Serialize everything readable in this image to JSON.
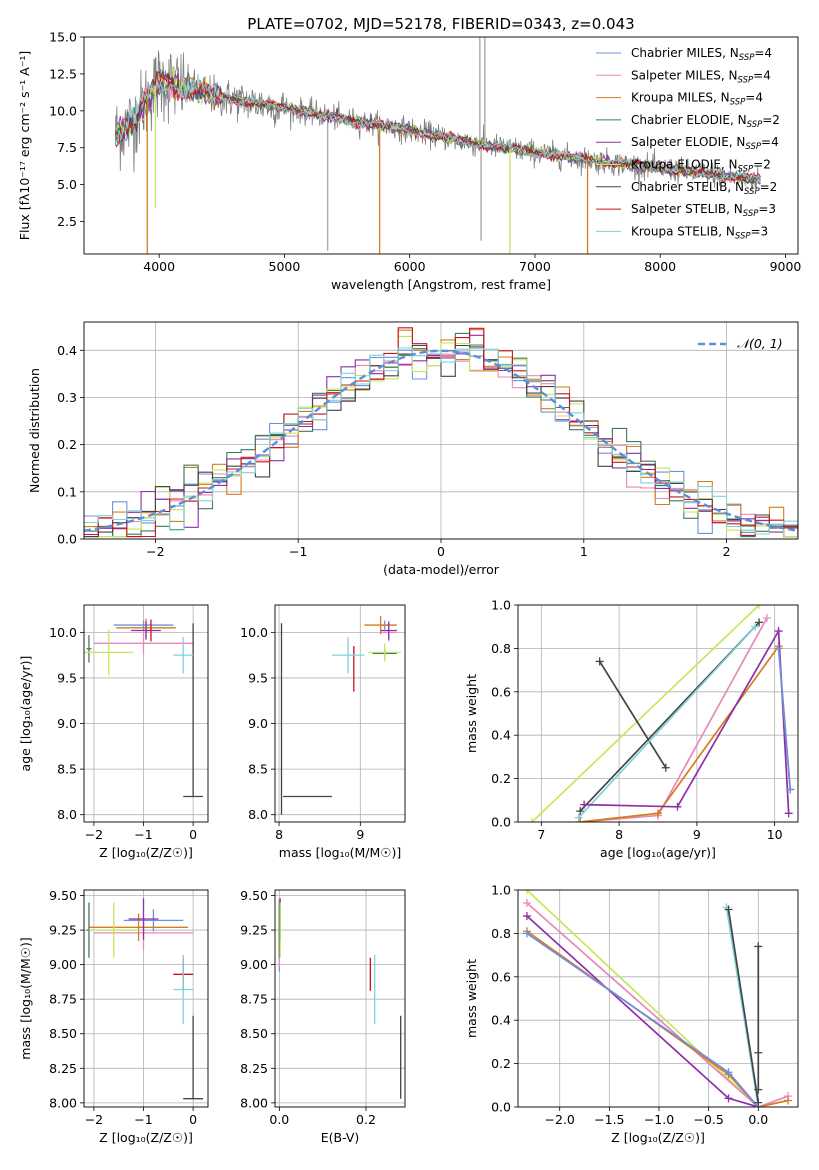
{
  "colors": {
    "chabrier_miles": "#6e8fe0",
    "salpeter_miles": "#e889b9",
    "kroupa_miles": "#d67b1e",
    "chabrier_elodie": "#3f7a5a",
    "salpeter_elodie": "#8e2ea8",
    "kroupa_elodie": "#c4e85a",
    "chabrier_stelib": "#444444",
    "salpeter_stelib": "#c8141e",
    "kroupa_stelib": "#7fd3d8",
    "data": "#808080",
    "gaussian": "#5b8fd8"
  },
  "chart_data": [
    {
      "id": "spectrum",
      "type": "line",
      "title": "PLATE=0702, MJD=52178, FIBERID=0343, z=0.043",
      "xlabel": "wavelength [Angstrom, rest frame]",
      "ylabel": "Flux [fλ10⁻¹⁷ erg cm⁻² s⁻¹ A⁻¹]",
      "xlim": [
        3400,
        9100
      ],
      "ylim": [
        0.3,
        15.0
      ],
      "xticks": [
        4000,
        5000,
        6000,
        7000,
        8000,
        9000
      ],
      "yticks": [
        2.5,
        5.0,
        7.5,
        10.0,
        12.5,
        15.0
      ],
      "xtick_labels": [
        "4000",
        "5000",
        "6000",
        "7000",
        "8000",
        "9000"
      ],
      "ytick_labels": [
        "2.5",
        "5.0",
        "7.5",
        "10.0",
        "12.5",
        "15.0"
      ],
      "legend_position": "top-right",
      "legend": [
        {
          "key": "chabrier_miles",
          "label": "Chabrier MILES, N",
          "sub": "SSP",
          "tail": "=4"
        },
        {
          "key": "salpeter_miles",
          "label": "Salpeter MILES, N",
          "sub": "SSP",
          "tail": "=4"
        },
        {
          "key": "kroupa_miles",
          "label": "Kroupa MILES, N",
          "sub": "SSP",
          "tail": "=4"
        },
        {
          "key": "chabrier_elodie",
          "label": "Chabrier ELODIE, N",
          "sub": "SSP",
          "tail": "=2"
        },
        {
          "key": "salpeter_elodie",
          "label": "Salpeter ELODIE, N",
          "sub": "SSP",
          "tail": "=4"
        },
        {
          "key": "kroupa_elodie",
          "label": "Kroupa ELODIE, N",
          "sub": "SSP",
          "tail": "=2"
        },
        {
          "key": "chabrier_stelib",
          "label": "Chabrier STELIB, N",
          "sub": "SSP",
          "tail": "=2"
        },
        {
          "key": "salpeter_stelib",
          "label": "Salpeter STELIB, N",
          "sub": "SSP",
          "tail": "=3"
        },
        {
          "key": "kroupa_stelib",
          "label": "Kroupa STELIB, N",
          "sub": "SSP",
          "tail": "=3"
        }
      ],
      "continuum": [
        [
          3650,
          8.4
        ],
        [
          3800,
          9.3
        ],
        [
          3900,
          10.8
        ],
        [
          4000,
          12.0
        ],
        [
          4200,
          11.6
        ],
        [
          4500,
          10.9
        ],
        [
          5000,
          10.2
        ],
        [
          5500,
          9.4
        ],
        [
          6000,
          8.7
        ],
        [
          6500,
          7.8
        ],
        [
          7000,
          7.2
        ],
        [
          7500,
          6.6
        ],
        [
          8000,
          6.1
        ],
        [
          8500,
          5.6
        ],
        [
          8800,
          5.3
        ]
      ],
      "model_dips": [
        {
          "x": 3905,
          "y": 0.3,
          "model": "kroupa_miles"
        },
        {
          "x": 3970,
          "y": 3.4,
          "model": "kroupa_elodie"
        },
        {
          "x": 5760,
          "y": 0.3,
          "model": "kroupa_miles"
        },
        {
          "x": 6800,
          "y": 0.3,
          "model": "kroupa_elodie"
        },
        {
          "x": 7420,
          "y": 0.3,
          "model": "kroupa_miles"
        }
      ],
      "data_spikes": [
        {
          "x": 5345,
          "y": 0.5
        },
        {
          "x": 6560,
          "y": 15.0
        },
        {
          "x": 6600,
          "y": 15.0
        },
        {
          "x": 6570,
          "y": 1.2
        }
      ]
    },
    {
      "id": "residuals",
      "type": "histogram",
      "xlabel": "(data-model)/error",
      "ylabel": "Normed distribution",
      "xlim": [
        -2.5,
        2.5
      ],
      "ylim": [
        0.0,
        0.46
      ],
      "xticks": [
        -2,
        -1,
        0,
        1,
        2
      ],
      "yticks": [
        0.0,
        0.1,
        0.2,
        0.3,
        0.4
      ],
      "xtick_labels": [
        "−2",
        "−1",
        "0",
        "1",
        "2"
      ],
      "ytick_labels": [
        "0.0",
        "0.1",
        "0.2",
        "0.3",
        "0.4"
      ],
      "legend_label": "𝒩(0, 1)",
      "legend_position": "top-right",
      "bin_width": 0.1
    },
    {
      "id": "age_vs_Z",
      "type": "errorbar",
      "xlabel": "Z [log₁₀(Z/Z☉)]",
      "ylabel": "age  [log₁₀(age/yr)]",
      "xlim": [
        -2.2,
        0.3
      ],
      "ylim": [
        7.92,
        10.3
      ],
      "xticks": [
        -2,
        -1,
        0
      ],
      "yticks": [
        8.0,
        8.5,
        9.0,
        9.5,
        10.0
      ],
      "xtick_labels": [
        "−2",
        "−1",
        "0"
      ],
      "ytick_labels": [
        "8.0",
        "8.5",
        "9.0",
        "9.5",
        "10.0"
      ],
      "points": [
        {
          "model": "chabrier_miles",
          "x": -1.0,
          "xerr": 0.6,
          "y": 10.08,
          "yerr": 0.05
        },
        {
          "model": "salpeter_miles",
          "x": -1.0,
          "xerr": 1.0,
          "y": 9.88,
          "yerr": 0.12
        },
        {
          "model": "kroupa_miles",
          "x": -0.95,
          "xerr": 0.6,
          "y": 10.05,
          "yerr": 0.1
        },
        {
          "model": "chabrier_elodie",
          "x": -2.1,
          "xerr": 0.05,
          "y": 9.82,
          "yerr": 0.15
        },
        {
          "model": "salpeter_elodie",
          "x": -0.95,
          "xerr": 0.3,
          "y": 10.02,
          "yerr": 0.1
        },
        {
          "model": "kroupa_elodie",
          "x": -1.7,
          "xerr": 0.5,
          "y": 9.78,
          "yerr": 0.25
        },
        {
          "model": "chabrier_stelib",
          "x": 0.0,
          "xerr": 0.2,
          "y": 8.2,
          "yerr": 0.0
        },
        {
          "model": "chabrier_stelib",
          "x": 0.0,
          "xerr": 0.0,
          "y": 9.15,
          "yerr": 0.95
        },
        {
          "model": "salpeter_stelib",
          "x": -0.85,
          "xerr": 0.0,
          "y": 10.02,
          "yerr": 0.12
        },
        {
          "model": "kroupa_stelib",
          "x": -0.2,
          "xerr": 0.2,
          "y": 9.75,
          "yerr": 0.2
        }
      ]
    },
    {
      "id": "age_vs_mass",
      "type": "errorbar",
      "xlabel": "mass [log₁₀(M/M☉)]",
      "ylabel": "",
      "xlim": [
        7.95,
        9.55
      ],
      "ylim": [
        7.92,
        10.3
      ],
      "xticks": [
        8,
        9
      ],
      "yticks": [
        8.0,
        8.5,
        9.0,
        9.5,
        10.0
      ],
      "xtick_labels": [
        "8",
        "9"
      ],
      "ytick_labels": [
        "8.0",
        "8.5",
        "9.0",
        "9.5",
        "10.0"
      ],
      "points": [
        {
          "model": "chabrier_miles",
          "x": 9.3,
          "xerr": 0.05,
          "y": 10.08,
          "yerr": 0.05
        },
        {
          "model": "salpeter_miles",
          "x": 9.35,
          "xerr": 0.1,
          "y": 10.0,
          "yerr": 0.1
        },
        {
          "model": "kroupa_miles",
          "x": 9.25,
          "xerr": 0.2,
          "y": 10.08,
          "yerr": 0.1
        },
        {
          "model": "chabrier_elodie",
          "x": 9.3,
          "xerr": 0.15,
          "y": 9.77,
          "yerr": 0.05
        },
        {
          "model": "salpeter_elodie",
          "x": 9.35,
          "xerr": 0.1,
          "y": 10.02,
          "yerr": 0.1
        },
        {
          "model": "kroupa_elodie",
          "x": 9.3,
          "xerr": 0.2,
          "y": 9.78,
          "yerr": 0.1
        },
        {
          "model": "chabrier_stelib",
          "x": 8.03,
          "xerr": 0.0,
          "y": 9.05,
          "yerr": 1.05
        },
        {
          "model": "chabrier_stelib",
          "x": 8.35,
          "xerr": 0.3,
          "y": 8.2,
          "yerr": 0.0
        },
        {
          "model": "salpeter_stelib",
          "x": 8.92,
          "xerr": 0.0,
          "y": 9.6,
          "yerr": 0.25
        },
        {
          "model": "kroupa_stelib",
          "x": 8.85,
          "xerr": 0.2,
          "y": 9.75,
          "yerr": 0.2
        }
      ]
    },
    {
      "id": "mass_weight_vs_age",
      "type": "line",
      "xlabel": "age  [log₁₀(age/yr)]",
      "ylabel": "mass weight",
      "xlim": [
        6.7,
        10.3
      ],
      "ylim": [
        0.0,
        1.0
      ],
      "xticks": [
        7,
        8,
        9,
        10
      ],
      "yticks": [
        0.0,
        0.2,
        0.4,
        0.6,
        0.8,
        1.0
      ],
      "xtick_labels": [
        "7",
        "8",
        "9",
        "10"
      ],
      "ytick_labels": [
        "0.0",
        "0.2",
        "0.4",
        "0.6",
        "0.8",
        "1.0"
      ],
      "series": [
        {
          "model": "kroupa_elodie",
          "x": [
            6.88,
            9.8
          ],
          "y": [
            0.0,
            1.0
          ]
        },
        {
          "model": "chabrier_stelib",
          "x": [
            7.75,
            8.6
          ],
          "y": [
            0.74,
            0.25
          ]
        },
        {
          "model": "chabrier_stelib",
          "x": [
            7.5,
            9.8
          ],
          "y": [
            0.05,
            0.92
          ]
        },
        {
          "model": "kroupa_stelib",
          "x": [
            7.48,
            9.75
          ],
          "y": [
            0.02,
            0.9
          ]
        },
        {
          "model": "salpeter_miles",
          "x": [
            7.5,
            8.5,
            9.9
          ],
          "y": [
            0.0,
            0.03,
            0.94
          ]
        },
        {
          "model": "kroupa_miles",
          "x": [
            7.5,
            8.5,
            10.05,
            10.2
          ],
          "y": [
            0.0,
            0.04,
            0.81,
            0.15
          ]
        },
        {
          "model": "salpeter_elodie",
          "x": [
            7.55,
            8.75,
            10.05,
            10.18
          ],
          "y": [
            0.08,
            0.07,
            0.88,
            0.04
          ]
        },
        {
          "model": "chabrier_miles",
          "x": [
            10.05,
            10.2
          ],
          "y": [
            0.8,
            0.15
          ]
        }
      ]
    },
    {
      "id": "mass_vs_Z",
      "type": "errorbar",
      "xlabel": "Z [log₁₀(Z/Z☉)]",
      "ylabel": "mass [log₁₀(M/M☉)]",
      "xlim": [
        -2.2,
        0.3
      ],
      "ylim": [
        7.97,
        9.54
      ],
      "xticks": [
        -2,
        -1,
        0
      ],
      "yticks": [
        8.0,
        8.25,
        8.5,
        8.75,
        9.0,
        9.25,
        9.5
      ],
      "xtick_labels": [
        "−2",
        "−1",
        "0"
      ],
      "ytick_labels": [
        "8.00",
        "8.25",
        "8.50",
        "8.75",
        "9.00",
        "9.25",
        "9.50"
      ],
      "points": [
        {
          "model": "chabrier_miles",
          "x": -0.8,
          "xerr": 0.6,
          "y": 9.32,
          "yerr": 0.08
        },
        {
          "model": "salpeter_miles",
          "x": -1.0,
          "xerr": 1.0,
          "y": 9.23,
          "yerr": 0.12
        },
        {
          "model": "kroupa_miles",
          "x": -1.1,
          "xerr": 1.0,
          "y": 9.27,
          "yerr": 0.1
        },
        {
          "model": "chabrier_elodie",
          "x": -2.1,
          "xerr": 0.05,
          "y": 9.25,
          "yerr": 0.2
        },
        {
          "model": "salpeter_elodie",
          "x": -1.0,
          "xerr": 0.3,
          "y": 9.33,
          "yerr": 0.15
        },
        {
          "model": "kroupa_elodie",
          "x": -1.6,
          "xerr": 0.5,
          "y": 9.25,
          "yerr": 0.2
        },
        {
          "model": "chabrier_stelib",
          "x": 0.0,
          "xerr": 0.2,
          "y": 8.03,
          "yerr": 0.0
        },
        {
          "model": "chabrier_stelib",
          "x": 0.0,
          "xerr": 0.0,
          "y": 8.33,
          "yerr": 0.3
        },
        {
          "model": "salpeter_stelib",
          "x": -0.2,
          "xerr": 0.2,
          "y": 8.93,
          "yerr": 0.12
        },
        {
          "model": "kroupa_stelib",
          "x": -0.2,
          "xerr": 0.2,
          "y": 8.82,
          "yerr": 0.25
        }
      ]
    },
    {
      "id": "mass_vs_ebv",
      "type": "errorbar",
      "xlabel": "E(B-V)",
      "ylabel": "",
      "xlim": [
        -0.01,
        0.29
      ],
      "ylim": [
        7.97,
        9.54
      ],
      "xticks": [
        0.0,
        0.2
      ],
      "yticks": [
        8.0,
        8.25,
        8.5,
        8.75,
        9.0,
        9.25,
        9.5
      ],
      "xtick_labels": [
        "0.0",
        "0.2"
      ],
      "ytick_labels": [
        "8.00",
        "8.25",
        "8.50",
        "8.75",
        "9.00",
        "9.25",
        "9.50"
      ],
      "points": [
        {
          "model": "chabrier_miles",
          "x": 0.0,
          "xerr": 0.0,
          "y": 9.2,
          "yerr": 0.25
        },
        {
          "model": "salpeter_miles",
          "x": 0.0,
          "xerr": 0.0,
          "y": 9.23,
          "yerr": 0.25
        },
        {
          "model": "kroupa_miles",
          "x": 0.0,
          "xerr": 0.0,
          "y": 9.27,
          "yerr": 0.2
        },
        {
          "model": "chabrier_elodie",
          "x": 0.0,
          "xerr": 0.0,
          "y": 9.25,
          "yerr": 0.2
        },
        {
          "model": "salpeter_elodie",
          "x": 0.002,
          "xerr": 0.0,
          "y": 9.33,
          "yerr": 0.15
        },
        {
          "model": "kroupa_elodie",
          "x": 0.002,
          "xerr": 0.0,
          "y": 9.25,
          "yerr": 0.2
        },
        {
          "model": "chabrier_stelib",
          "x": 0.28,
          "xerr": 0.0,
          "y": 8.33,
          "yerr": 0.3
        },
        {
          "model": "salpeter_stelib",
          "x": 0.21,
          "xerr": 0.0,
          "y": 8.93,
          "yerr": 0.12
        },
        {
          "model": "kroupa_stelib",
          "x": 0.22,
          "xerr": 0.0,
          "y": 8.82,
          "yerr": 0.25
        }
      ]
    },
    {
      "id": "mass_weight_vs_Z",
      "type": "line",
      "xlabel": "Z [log₁₀(Z/Z☉)]",
      "ylabel": "mass weight",
      "xlim": [
        -2.42,
        0.4
      ],
      "ylim": [
        0.0,
        1.0
      ],
      "xticks": [
        -2.0,
        -1.5,
        -1.0,
        -0.5,
        0.0
      ],
      "yticks": [
        0.0,
        0.2,
        0.4,
        0.6,
        0.8,
        1.0
      ],
      "xtick_labels": [
        "−2.0",
        "−1.5",
        "−1.0",
        "−0.5",
        "0.0"
      ],
      "ytick_labels": [
        "0.0",
        "0.2",
        "0.4",
        "0.6",
        "0.8",
        "1.0"
      ],
      "series": [
        {
          "model": "kroupa_elodie",
          "x": [
            -2.33,
            0.0
          ],
          "y": [
            1.0,
            0.0
          ]
        },
        {
          "model": "salpeter_miles",
          "x": [
            -2.33,
            0.0,
            0.3
          ],
          "y": [
            0.94,
            0.0,
            0.05
          ]
        },
        {
          "model": "salpeter_elodie",
          "x": [
            -2.33,
            -0.3,
            0.0
          ],
          "y": [
            0.88,
            0.04,
            0.0
          ]
        },
        {
          "model": "kroupa_miles",
          "x": [
            -2.33,
            -0.3,
            0.0,
            0.3
          ],
          "y": [
            0.81,
            0.15,
            0.0,
            0.03
          ]
        },
        {
          "model": "chabrier_miles",
          "x": [
            -2.33,
            -0.3,
            0.0
          ],
          "y": [
            0.8,
            0.16,
            0.0
          ]
        },
        {
          "model": "kroupa_stelib",
          "x": [
            -0.32,
            0.0
          ],
          "y": [
            0.92,
            0.0
          ]
        },
        {
          "model": "chabrier_stelib",
          "x": [
            -0.3,
            0.0
          ],
          "y": [
            0.91,
            0.02
          ]
        },
        {
          "model": "chabrier_stelib",
          "x": [
            0.0,
            0.0,
            0.0
          ],
          "y": [
            0.74,
            0.25,
            0.08
          ]
        }
      ]
    }
  ]
}
